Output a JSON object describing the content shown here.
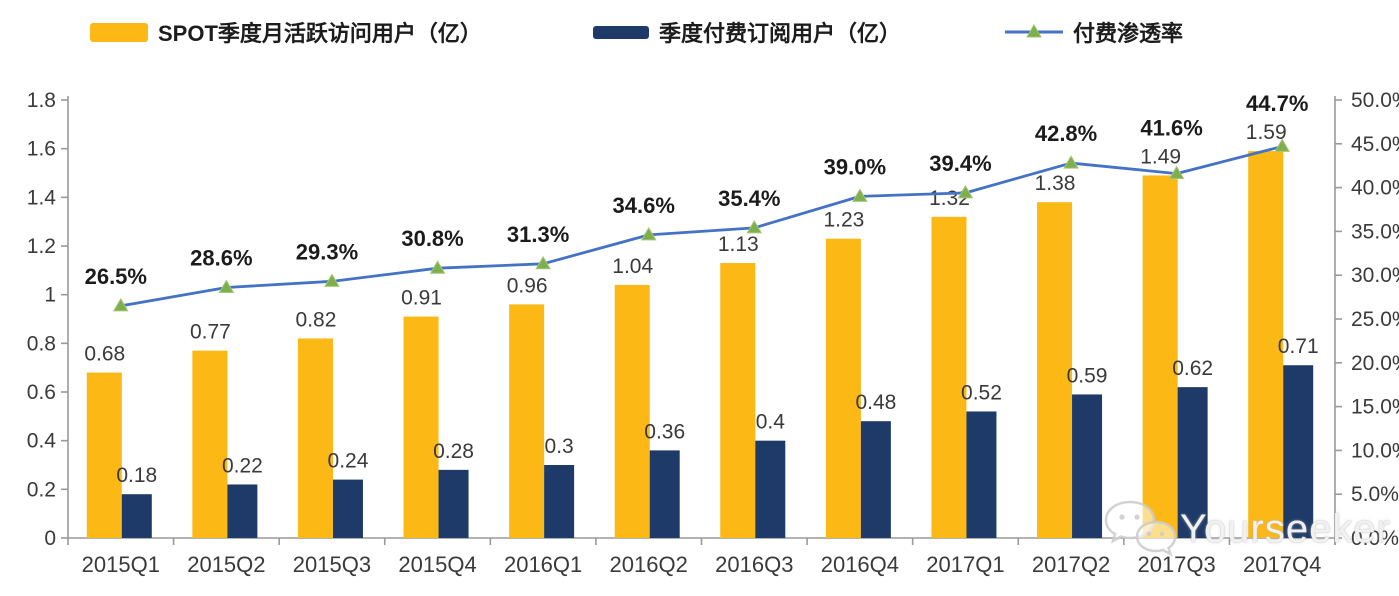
{
  "chart_data": {
    "type": "combo_bar_line",
    "title": "",
    "categories": [
      "2015Q1",
      "2015Q2",
      "2015Q3",
      "2015Q4",
      "2016Q1",
      "2016Q2",
      "2016Q3",
      "2016Q4",
      "2017Q1",
      "2017Q2",
      "2017Q3",
      "2017Q4"
    ],
    "series": [
      {
        "name": "SPOT季度月活跃访问用户（亿）",
        "type": "bar",
        "axis": "left",
        "color": "#FCB815",
        "values": [
          0.68,
          0.77,
          0.82,
          0.91,
          0.96,
          1.04,
          1.13,
          1.23,
          1.32,
          1.38,
          1.49,
          1.59
        ],
        "labels": [
          "0.68",
          "0.77",
          "0.82",
          "0.91",
          "0.96",
          "1.04",
          "1.13",
          "1.23",
          "1.32",
          "1.38",
          "1.49",
          "1.59"
        ]
      },
      {
        "name": "季度付费订阅用户（亿）",
        "type": "bar",
        "axis": "left",
        "color": "#1E3A68",
        "values": [
          0.18,
          0.22,
          0.24,
          0.28,
          0.3,
          0.36,
          0.4,
          0.48,
          0.52,
          0.59,
          0.62,
          0.71
        ],
        "labels": [
          "0.18",
          "0.22",
          "0.24",
          "0.28",
          "0.3",
          "0.36",
          "0.4",
          "0.48",
          "0.52",
          "0.59",
          "0.62",
          "0.71"
        ]
      },
      {
        "name": "付费渗透率",
        "type": "line",
        "axis": "right",
        "color": "#4472C4",
        "marker": "triangle",
        "marker_color": "#7FAE4C",
        "values": [
          26.5,
          28.6,
          29.3,
          30.8,
          31.3,
          34.6,
          35.4,
          39.0,
          39.4,
          42.8,
          41.6,
          44.7
        ],
        "labels": [
          "26.5%",
          "28.6%",
          "29.3%",
          "30.8%",
          "31.3%",
          "34.6%",
          "35.4%",
          "39.0%",
          "39.4%",
          "42.8%",
          "41.6%",
          "44.7%"
        ]
      }
    ],
    "left_axis": {
      "min": 0,
      "max": 1.8,
      "ticks": [
        "0",
        "0.2",
        "0.4",
        "0.6",
        "0.8",
        "1",
        "1.2",
        "1.4",
        "1.6",
        "1.8"
      ]
    },
    "right_axis": {
      "min": 0,
      "max": 50,
      "ticks": [
        "0.0%",
        "5.0%",
        "10.0%",
        "15.0%",
        "20.0%",
        "25.0%",
        "30.0%",
        "35.0%",
        "40.0%",
        "45.0%",
        "50.0%"
      ]
    },
    "grid": false,
    "legend_position": "top",
    "colors": {
      "axis": "#9A9A9A",
      "bar_label": "#3A3A3A",
      "pct_label": "#1b1b1b",
      "tick_label": "#3A3A3A"
    }
  },
  "watermark": {
    "icon": "wechat-icon",
    "text": "Yourseeker"
  }
}
